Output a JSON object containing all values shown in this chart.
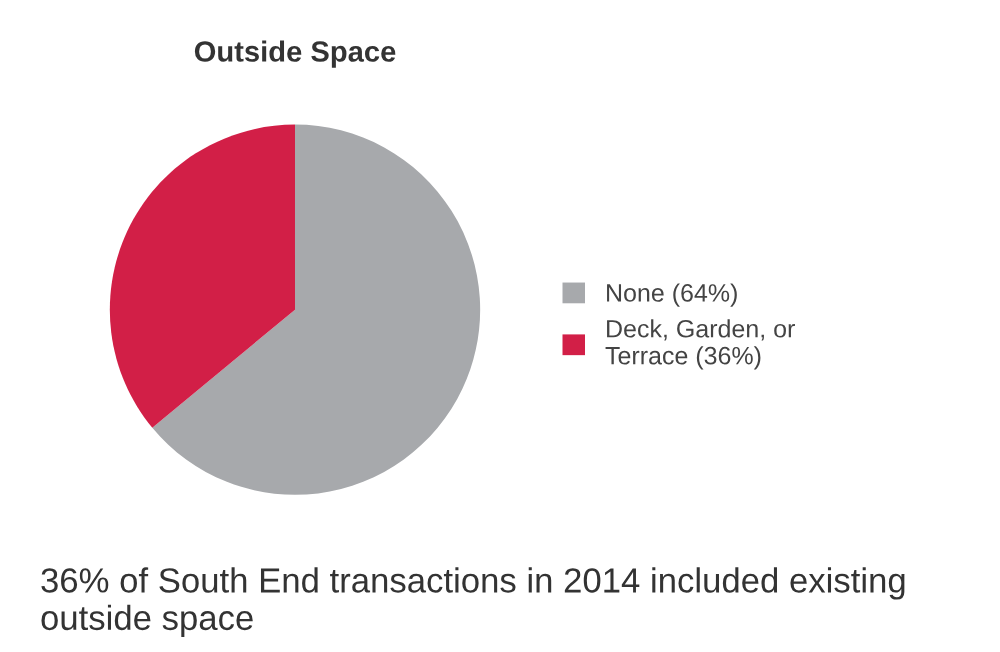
{
  "chart_data": {
    "type": "pie",
    "title": "Outside Space",
    "categories": [
      "None (64%)",
      "Deck, Garden, or Terrace (36%)"
    ],
    "values": [
      64,
      36
    ],
    "colors": [
      "#a7a9ac",
      "#d21f47"
    ],
    "legend": "right",
    "annotations": [
      "36% of South End transactions in 2014 included existing outside space"
    ]
  }
}
